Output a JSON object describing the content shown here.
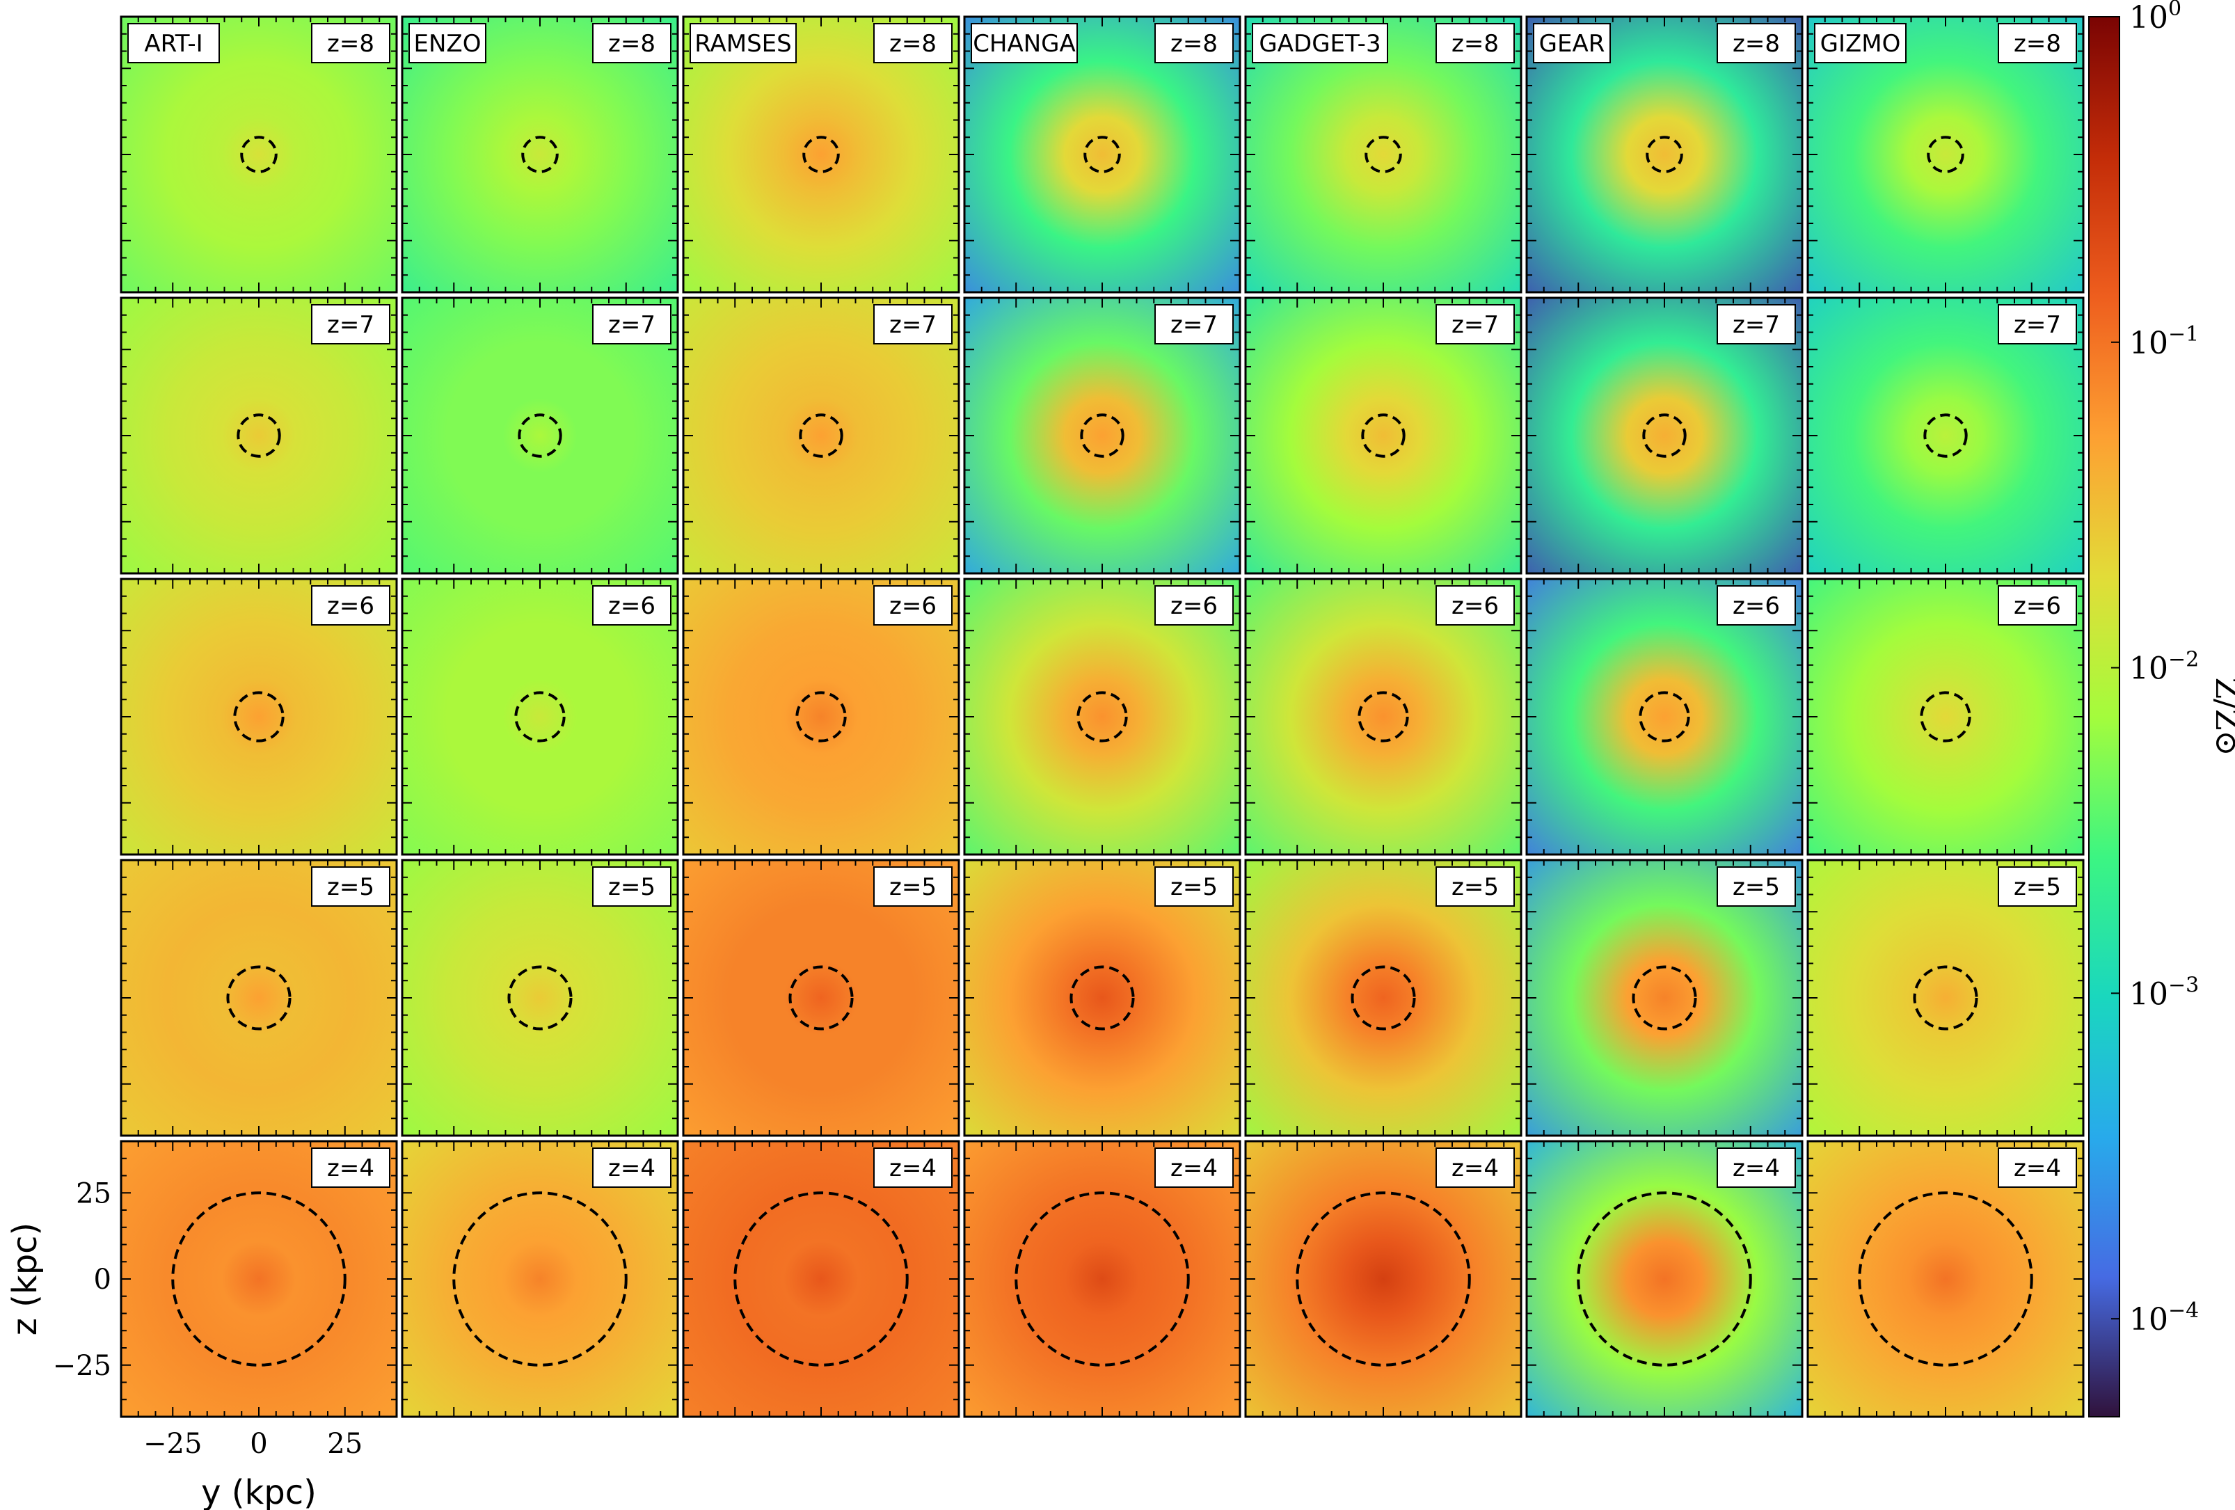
{
  "chart_data": {
    "type": "heatmap",
    "description": "Projected gas metallicity maps, 7 codes × 5 redshifts; dashed circle marks virial radius",
    "codes": [
      "ART-I",
      "ENZO",
      "RAMSES",
      "CHANGA",
      "GADGET-3",
      "GEAR",
      "GIZMO"
    ],
    "redshifts": [
      "z=8",
      "z=7",
      "z=6",
      "z=5",
      "z=4"
    ],
    "virial_radius_kpc": [
      5,
      6,
      7,
      9,
      25
    ],
    "metallicity_log_center": [
      [
        -1.8,
        -1.9,
        -1.3,
        -1.5,
        -1.7,
        -1.5,
        -1.9
      ],
      [
        -1.6,
        -2.1,
        -1.3,
        -1.3,
        -1.5,
        -1.4,
        -2.0
      ],
      [
        -1.3,
        -1.9,
        -1.1,
        -1.2,
        -1.2,
        -1.3,
        -1.7
      ],
      [
        -1.3,
        -1.6,
        -0.9,
        -0.8,
        -0.9,
        -1.1,
        -1.4
      ],
      [
        -1.0,
        -1.1,
        -0.8,
        -0.7,
        -0.6,
        -1.0,
        -1.0
      ]
    ],
    "metallicity_log_background": [
      [
        -2.4,
        -2.7,
        -2.2,
        -3.7,
        -3.0,
        -4.0,
        -3.2
      ],
      [
        -2.2,
        -2.5,
        -1.9,
        -3.5,
        -2.8,
        -4.0,
        -3.1
      ],
      [
        -1.9,
        -2.3,
        -1.6,
        -2.5,
        -2.5,
        -3.8,
        -2.6
      ],
      [
        -1.6,
        -2.2,
        -1.3,
        -1.8,
        -2.2,
        -3.6,
        -2.1
      ],
      [
        -1.3,
        -1.7,
        -1.1,
        -1.3,
        -1.6,
        -3.4,
        -1.7
      ]
    ],
    "axes": {
      "x_label": "y  (kpc)",
      "y_label": "z  (kpc)",
      "x_ticks": [
        "−25",
        "0",
        "25"
      ],
      "y_ticks": [
        "25",
        "0",
        "−25"
      ],
      "tick_values": [
        -25,
        0,
        25
      ],
      "extent": [
        -40,
        40
      ]
    },
    "colorbar": {
      "label": "Z/Z⊙",
      "scale": "log",
      "range": [
        5e-05,
        1
      ],
      "ticks": [
        {
          "base": "10",
          "exp": "0",
          "value": 1
        },
        {
          "base": "10",
          "exp": "−1",
          "value": 0.1
        },
        {
          "base": "10",
          "exp": "−2",
          "value": 0.01
        },
        {
          "base": "10",
          "exp": "−3",
          "value": 0.001
        },
        {
          "base": "10",
          "exp": "−4",
          "value": 0.0001
        }
      ],
      "colormap": "turbo"
    }
  }
}
